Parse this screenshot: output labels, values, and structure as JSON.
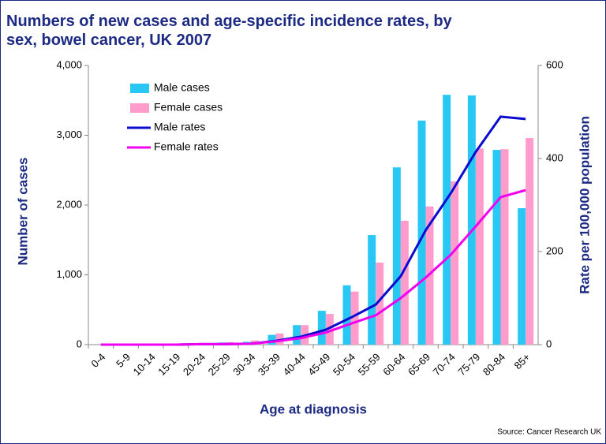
{
  "chart_data": {
    "type": "bar_line",
    "title": "Numbers of new cases and age-specific incidence rates, by sex, bowel cancer, UK 2007",
    "xlabel": "Age at diagnosis",
    "ylabel": "Number of cases",
    "y2label": "Rate per 100,000 population",
    "source": "Source: Cancer Research UK",
    "categories": [
      "0-4",
      "5-9",
      "10-14",
      "15-19",
      "20-24",
      "25-29",
      "30-34",
      "35-39",
      "40-44",
      "45-49",
      "50-54",
      "55-59",
      "60-64",
      "65-69",
      "70-74",
      "75-79",
      "80-84",
      "85+"
    ],
    "series": [
      {
        "name": "Male cases",
        "kind": "bar",
        "color": "#29c8f4",
        "values": [
          0,
          0,
          0,
          5,
          15,
          30,
          40,
          140,
          280,
          485,
          850,
          1570,
          2540,
          3210,
          3580,
          3570,
          2790,
          1955
        ]
      },
      {
        "name": "Female cases",
        "kind": "bar",
        "color": "#ff9ccc",
        "values": [
          5,
          5,
          5,
          10,
          20,
          35,
          60,
          160,
          280,
          440,
          760,
          1175,
          1775,
          1980,
          2340,
          2810,
          2800,
          2960
        ]
      },
      {
        "name": "Male rates",
        "kind": "line",
        "axis": "y2",
        "color": "#0a0ad0",
        "values": [
          0,
          0,
          0,
          0,
          1,
          1,
          2,
          8,
          17,
          32,
          58,
          86,
          147,
          246,
          325,
          414,
          490,
          485
        ]
      },
      {
        "name": "Female rates",
        "kind": "line",
        "axis": "y2",
        "color": "#f000f0",
        "values": [
          0,
          0,
          0,
          0,
          1,
          1,
          2,
          7,
          14,
          26,
          45,
          63,
          100,
          144,
          193,
          254,
          317,
          332
        ]
      }
    ],
    "ylim": [
      0,
      4000
    ],
    "yticks": [
      0,
      {
        "value": 1000,
        "label": "1,000"
      },
      {
        "value": 2000,
        "label": "2,000"
      },
      {
        "value": 3000,
        "label": "3,000"
      },
      {
        "value": 4000,
        "label": "4,000"
      }
    ],
    "y2lim": [
      0,
      600
    ],
    "y2ticks": [
      0,
      200,
      400,
      600
    ],
    "legend": "upper left"
  }
}
